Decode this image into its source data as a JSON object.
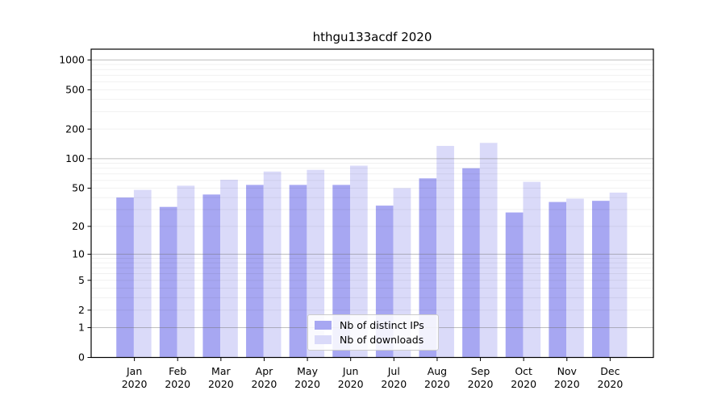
{
  "chart_data": {
    "type": "bar",
    "title": "hthgu133acdf 2020",
    "categories": [
      "Jan",
      "Feb",
      "Mar",
      "Apr",
      "May",
      "Jun",
      "Jul",
      "Aug",
      "Sep",
      "Oct",
      "Nov",
      "Dec"
    ],
    "category_year": "2020",
    "series": [
      {
        "name": "Nb of distinct IPs",
        "color": "#a7a7f2",
        "values": [
          40,
          32,
          43,
          54,
          54,
          54,
          33,
          63,
          80,
          28,
          36,
          37
        ]
      },
      {
        "name": "Nb of downloads",
        "color": "#dadaf9",
        "values": [
          48,
          53,
          61,
          74,
          77,
          85,
          50,
          135,
          145,
          58,
          39,
          45
        ]
      }
    ],
    "y_scale": "log1p",
    "y_ticks": [
      0,
      1,
      2,
      5,
      10,
      20,
      50,
      100,
      200,
      500,
      1000
    ],
    "ylim": [
      0,
      1285
    ],
    "grid": true,
    "major_grid_values": [
      1,
      10,
      100,
      1000
    ],
    "legend_position": "lower center",
    "legend_labels": [
      "Nb of distinct IPs",
      "Nb of downloads"
    ],
    "axis_color": "#000000",
    "major_grid_color": "rgba(110,110,110,0.45)",
    "minor_grid_color": "rgba(0,0,0,0.06)"
  }
}
